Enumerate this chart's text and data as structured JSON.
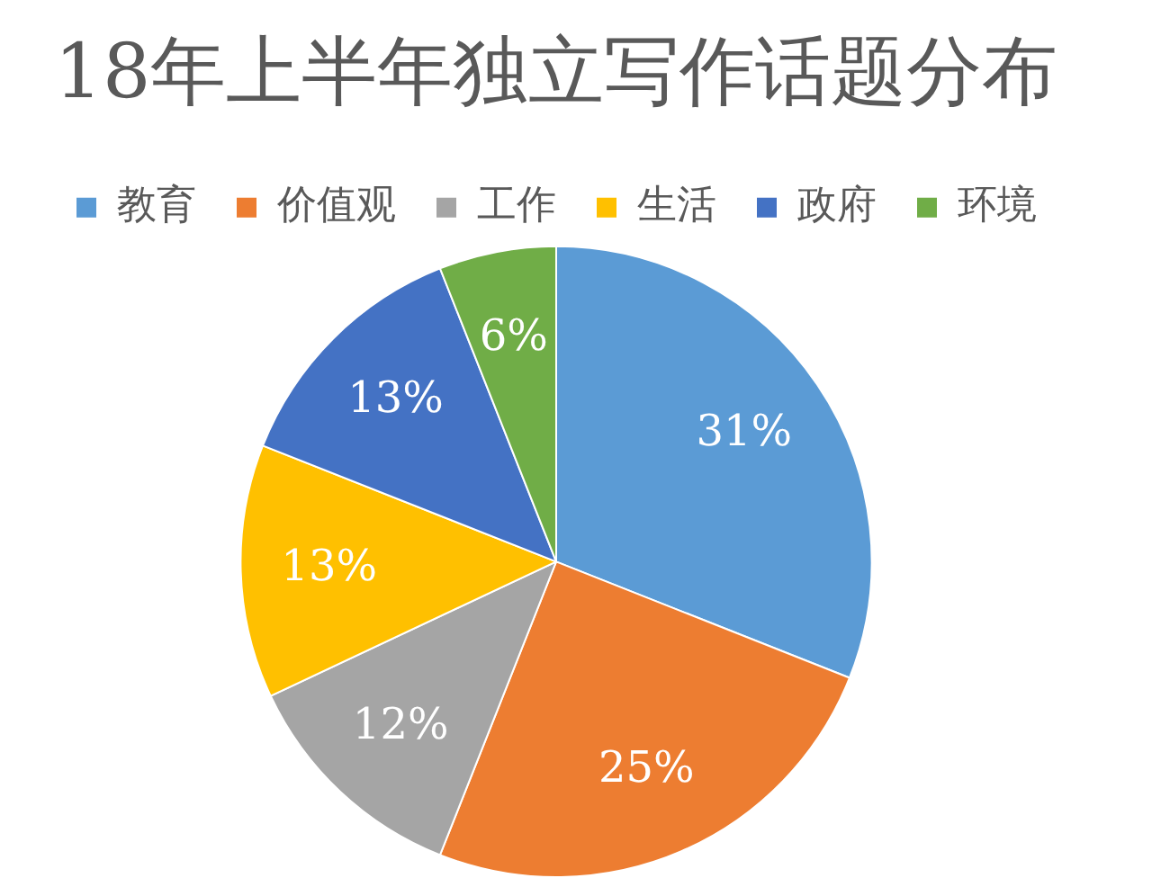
{
  "chart_data": {
    "type": "pie",
    "title": "18年上半年独立写作话题分布",
    "categories": [
      "教育",
      "价值观",
      "工作",
      "生活",
      "政府",
      "环境"
    ],
    "values": [
      31,
      25,
      12,
      13,
      13,
      6
    ],
    "colors": [
      "#5b9bd5",
      "#ed7d31",
      "#a5a5a5",
      "#ffc000",
      "#4472c4",
      "#70ad47"
    ],
    "value_labels": [
      "31%",
      "25%",
      "12%",
      "13%",
      "13%",
      "6%"
    ],
    "legend": "top"
  }
}
